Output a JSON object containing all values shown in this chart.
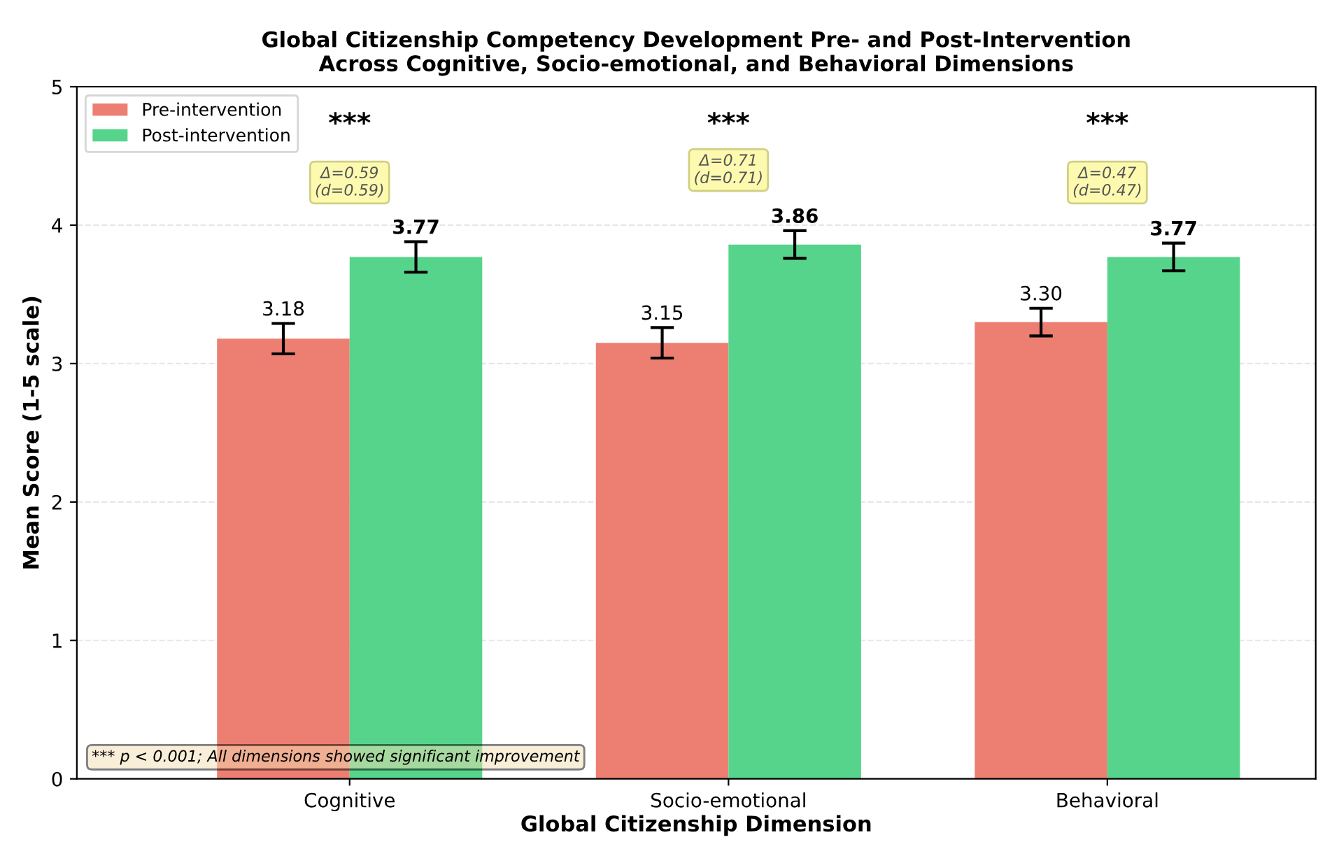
{
  "chart_data": {
    "type": "bar",
    "title": "Global Citizenship Competency Development Pre- and Post-Intervention\nAcross Cognitive, Socio-emotional, and Behavioral Dimensions",
    "xlabel": "Global Citizenship Dimension",
    "ylabel": "Mean Score (1-5 scale)",
    "categories": [
      "Cognitive",
      "Socio-emotional",
      "Behavioral"
    ],
    "series": [
      {
        "name": "Pre-intervention",
        "color": "#ec7f72",
        "values": [
          3.18,
          3.15,
          3.3
        ],
        "errors": [
          0.11,
          0.11,
          0.1
        ],
        "value_labels": [
          "3.18",
          "3.15",
          "3.30"
        ]
      },
      {
        "name": "Post-intervention",
        "color": "#57d48c",
        "values": [
          3.77,
          3.86,
          3.77
        ],
        "errors": [
          0.11,
          0.1,
          0.1
        ],
        "value_labels": [
          "3.77",
          "3.86",
          "3.77"
        ]
      }
    ],
    "ylim": [
      0,
      5
    ],
    "yticks": [
      0,
      1,
      2,
      3,
      4,
      5
    ],
    "grid": "y",
    "legend": "top left",
    "annotations": [
      "***",
      "***",
      "***",
      "Δ=0.59\n(d=0.59)",
      "Δ=0.71\n(d=0.71)",
      "Δ=0.47\n(d=0.47)",
      "*** p < 0.001; All dimensions showed significant improvement"
    ]
  }
}
